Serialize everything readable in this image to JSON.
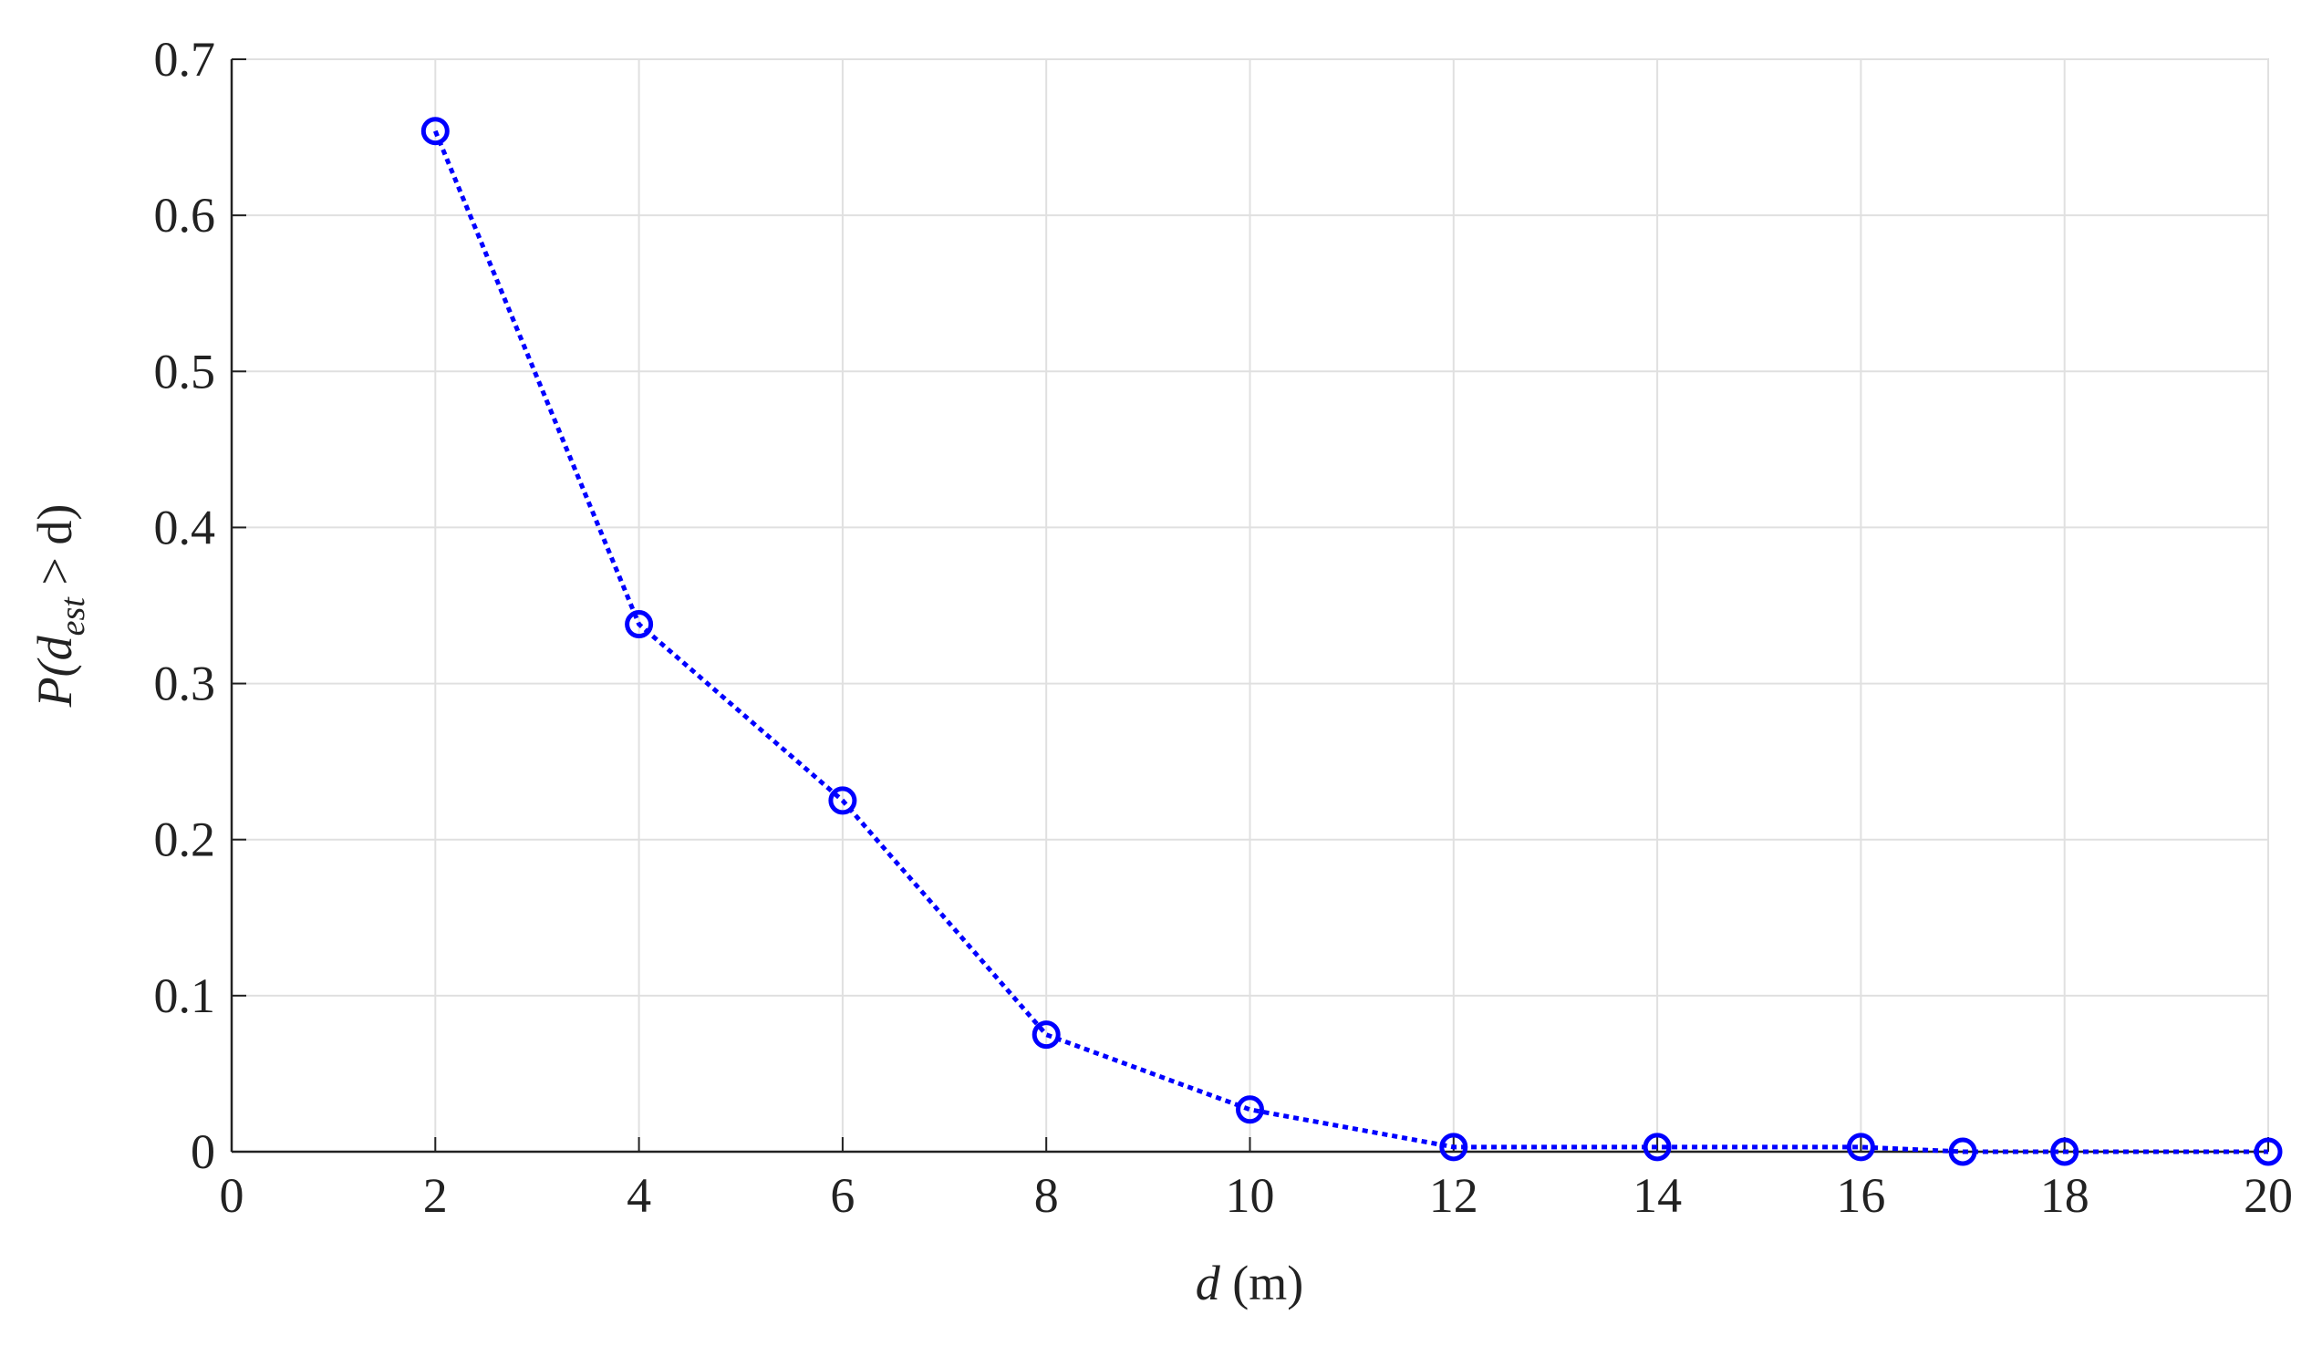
{
  "chart_data": {
    "type": "line",
    "x_label": [
      "d",
      " (m)"
    ],
    "y_label": [
      "P(d",
      "est",
      " > d)"
    ],
    "x": [
      2,
      4,
      6,
      8,
      10,
      12,
      14,
      16,
      17,
      18,
      20
    ],
    "series": [
      {
        "color": "#0000ff",
        "values": [
          0.654,
          0.338,
          0.225,
          0.075,
          0.027,
          0.003,
          0.003,
          0.003,
          0,
          0,
          0
        ]
      }
    ],
    "xlim": [
      0,
      20
    ],
    "xticks": [
      0,
      2,
      4,
      6,
      8,
      10,
      12,
      14,
      16,
      18,
      20
    ],
    "ylim": [
      0,
      0.7
    ],
    "yticks": [
      0,
      0.1,
      0.2,
      0.3,
      0.4,
      0.5,
      0.6,
      0.7
    ],
    "grid": true
  }
}
